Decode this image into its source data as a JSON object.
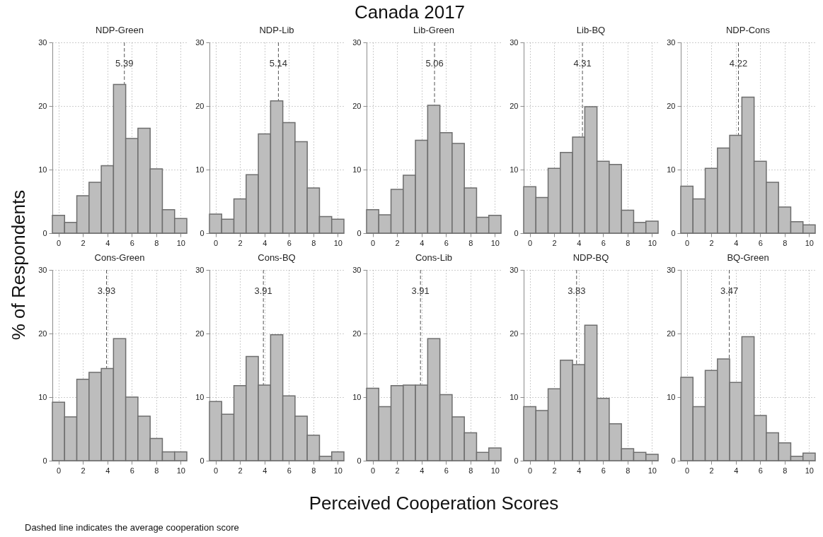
{
  "chart_data": [
    {
      "type": "histogram",
      "title": "NDP-Green",
      "bins": [
        -0.5,
        0.5,
        1.5,
        2.5,
        3.5,
        4.5,
        5.5,
        6.5,
        7.5,
        8.5,
        9.5,
        10.5
      ],
      "values": [
        2.8,
        1.7,
        5.9,
        8.0,
        10.6,
        23.4,
        14.9,
        16.5,
        10.1,
        3.7,
        2.3
      ],
      "color": "#bdbdbd",
      "xlim": [
        -0.5,
        10.5
      ],
      "ylim": [
        0,
        30
      ],
      "xticks": [
        0,
        2,
        4,
        6,
        8,
        10
      ],
      "yticks": [
        0,
        10,
        20,
        30
      ],
      "grid": true,
      "ref_lines": [
        {
          "axis": "x",
          "value": 5.39,
          "label": "5.39",
          "color": "#555555",
          "line_style": "dashed"
        }
      ]
    },
    {
      "type": "histogram",
      "title": "NDP-Lib",
      "bins": [
        -0.5,
        0.5,
        1.5,
        2.5,
        3.5,
        4.5,
        5.5,
        6.5,
        7.5,
        8.5,
        9.5,
        10.5
      ],
      "values": [
        3.0,
        2.2,
        5.4,
        9.2,
        15.6,
        20.8,
        17.4,
        14.4,
        7.1,
        2.6,
        2.2
      ],
      "color": "#bdbdbd",
      "xlim": [
        -0.5,
        10.5
      ],
      "ylim": [
        0,
        30
      ],
      "xticks": [
        0,
        2,
        4,
        6,
        8,
        10
      ],
      "yticks": [
        0,
        10,
        20,
        30
      ],
      "grid": true,
      "ref_lines": [
        {
          "axis": "x",
          "value": 5.14,
          "label": "5.14",
          "color": "#555555",
          "line_style": "dashed"
        }
      ]
    },
    {
      "type": "histogram",
      "title": "Lib-Green",
      "bins": [
        -0.5,
        0.5,
        1.5,
        2.5,
        3.5,
        4.5,
        5.5,
        6.5,
        7.5,
        8.5,
        9.5,
        10.5
      ],
      "values": [
        3.7,
        2.9,
        6.9,
        9.1,
        14.6,
        20.1,
        15.8,
        14.1,
        7.1,
        2.5,
        2.8
      ],
      "color": "#bdbdbd",
      "xlim": [
        -0.5,
        10.5
      ],
      "ylim": [
        0,
        30
      ],
      "xticks": [
        0,
        2,
        4,
        6,
        8,
        10
      ],
      "yticks": [
        0,
        10,
        20,
        30
      ],
      "grid": true,
      "ref_lines": [
        {
          "axis": "x",
          "value": 5.06,
          "label": "5.06",
          "color": "#555555",
          "line_style": "dashed"
        }
      ]
    },
    {
      "type": "histogram",
      "title": "Lib-BQ",
      "bins": [
        -0.5,
        0.5,
        1.5,
        2.5,
        3.5,
        4.5,
        5.5,
        6.5,
        7.5,
        8.5,
        9.5,
        10.5
      ],
      "values": [
        7.3,
        5.6,
        10.2,
        12.7,
        15.1,
        19.9,
        11.3,
        10.8,
        3.6,
        1.7,
        1.9
      ],
      "color": "#bdbdbd",
      "xlim": [
        -0.5,
        10.5
      ],
      "ylim": [
        0,
        30
      ],
      "xticks": [
        0,
        2,
        4,
        6,
        8,
        10
      ],
      "yticks": [
        0,
        10,
        20,
        30
      ],
      "grid": true,
      "ref_lines": [
        {
          "axis": "x",
          "value": 4.31,
          "label": "4.31",
          "color": "#555555",
          "line_style": "dashed"
        }
      ]
    },
    {
      "type": "histogram",
      "title": "NDP-Cons",
      "bins": [
        -0.5,
        0.5,
        1.5,
        2.5,
        3.5,
        4.5,
        5.5,
        6.5,
        7.5,
        8.5,
        9.5,
        10.5
      ],
      "values": [
        7.4,
        5.4,
        10.2,
        13.4,
        15.4,
        21.4,
        11.3,
        8.0,
        4.1,
        1.8,
        1.3
      ],
      "color": "#bdbdbd",
      "xlim": [
        -0.5,
        10.5
      ],
      "ylim": [
        0,
        30
      ],
      "xticks": [
        0,
        2,
        4,
        6,
        8,
        10
      ],
      "yticks": [
        0,
        10,
        20,
        30
      ],
      "grid": true,
      "ref_lines": [
        {
          "axis": "x",
          "value": 4.22,
          "label": "4.22",
          "color": "#555555",
          "line_style": "dashed"
        }
      ]
    },
    {
      "type": "histogram",
      "title": "Cons-Green",
      "bins": [
        -0.5,
        0.5,
        1.5,
        2.5,
        3.5,
        4.5,
        5.5,
        6.5,
        7.5,
        8.5,
        9.5,
        10.5
      ],
      "values": [
        9.2,
        6.9,
        12.8,
        13.9,
        14.5,
        19.2,
        10.0,
        7.0,
        3.5,
        1.4,
        1.4
      ],
      "color": "#bdbdbd",
      "xlim": [
        -0.5,
        10.5
      ],
      "ylim": [
        0,
        30
      ],
      "xticks": [
        0,
        2,
        4,
        6,
        8,
        10
      ],
      "yticks": [
        0,
        10,
        20,
        30
      ],
      "grid": true,
      "ref_lines": [
        {
          "axis": "x",
          "value": 3.93,
          "label": "3.93",
          "color": "#555555",
          "line_style": "dashed"
        }
      ]
    },
    {
      "type": "histogram",
      "title": "Cons-BQ",
      "bins": [
        -0.5,
        0.5,
        1.5,
        2.5,
        3.5,
        4.5,
        5.5,
        6.5,
        7.5,
        8.5,
        9.5,
        10.5
      ],
      "values": [
        9.3,
        7.3,
        11.8,
        16.4,
        11.9,
        19.8,
        10.2,
        7.0,
        4.0,
        0.7,
        1.4
      ],
      "color": "#bdbdbd",
      "xlim": [
        -0.5,
        10.5
      ],
      "ylim": [
        0,
        30
      ],
      "xticks": [
        0,
        2,
        4,
        6,
        8,
        10
      ],
      "yticks": [
        0,
        10,
        20,
        30
      ],
      "grid": true,
      "ref_lines": [
        {
          "axis": "x",
          "value": 3.91,
          "label": "3.91",
          "color": "#555555",
          "line_style": "dashed"
        }
      ]
    },
    {
      "type": "histogram",
      "title": "Cons-Lib",
      "bins": [
        -0.5,
        0.5,
        1.5,
        2.5,
        3.5,
        4.5,
        5.5,
        6.5,
        7.5,
        8.5,
        9.5,
        10.5
      ],
      "values": [
        11.4,
        8.5,
        11.8,
        11.9,
        11.9,
        19.2,
        10.4,
        6.9,
        4.4,
        1.3,
        2.0
      ],
      "color": "#bdbdbd",
      "xlim": [
        -0.5,
        10.5
      ],
      "ylim": [
        0,
        30
      ],
      "xticks": [
        0,
        2,
        4,
        6,
        8,
        10
      ],
      "yticks": [
        0,
        10,
        20,
        30
      ],
      "grid": true,
      "ref_lines": [
        {
          "axis": "x",
          "value": 3.91,
          "label": "3.91",
          "color": "#555555",
          "line_style": "dashed"
        }
      ]
    },
    {
      "type": "histogram",
      "title": "NDP-BQ",
      "bins": [
        -0.5,
        0.5,
        1.5,
        2.5,
        3.5,
        4.5,
        5.5,
        6.5,
        7.5,
        8.5,
        9.5,
        10.5
      ],
      "values": [
        8.5,
        7.9,
        11.3,
        15.8,
        15.1,
        21.3,
        9.8,
        5.8,
        1.9,
        1.3,
        1.0
      ],
      "color": "#bdbdbd",
      "xlim": [
        -0.5,
        10.5
      ],
      "ylim": [
        0,
        30
      ],
      "xticks": [
        0,
        2,
        4,
        6,
        8,
        10
      ],
      "yticks": [
        0,
        10,
        20,
        30
      ],
      "grid": true,
      "ref_lines": [
        {
          "axis": "x",
          "value": 3.83,
          "label": "3.83",
          "color": "#555555",
          "line_style": "dashed"
        }
      ]
    },
    {
      "type": "histogram",
      "title": "BQ-Green",
      "bins": [
        -0.5,
        0.5,
        1.5,
        2.5,
        3.5,
        4.5,
        5.5,
        6.5,
        7.5,
        8.5,
        9.5,
        10.5
      ],
      "values": [
        13.1,
        8.5,
        14.2,
        16.0,
        12.3,
        19.5,
        7.1,
        4.4,
        2.8,
        0.7,
        1.2
      ],
      "color": "#bdbdbd",
      "xlim": [
        -0.5,
        10.5
      ],
      "ylim": [
        0,
        30
      ],
      "xticks": [
        0,
        2,
        4,
        6,
        8,
        10
      ],
      "yticks": [
        0,
        10,
        20,
        30
      ],
      "grid": true,
      "ref_lines": [
        {
          "axis": "x",
          "value": 3.47,
          "label": "3.47",
          "color": "#555555",
          "line_style": "dashed"
        }
      ]
    },
    {
      "type": "other",
      "title": "Canada 2017",
      "xlabel": "Perceived Cooperation Scores",
      "ylabel": "% of Respondents",
      "annotations": [
        "Dashed line indicates the average cooperation score"
      ]
    }
  ]
}
